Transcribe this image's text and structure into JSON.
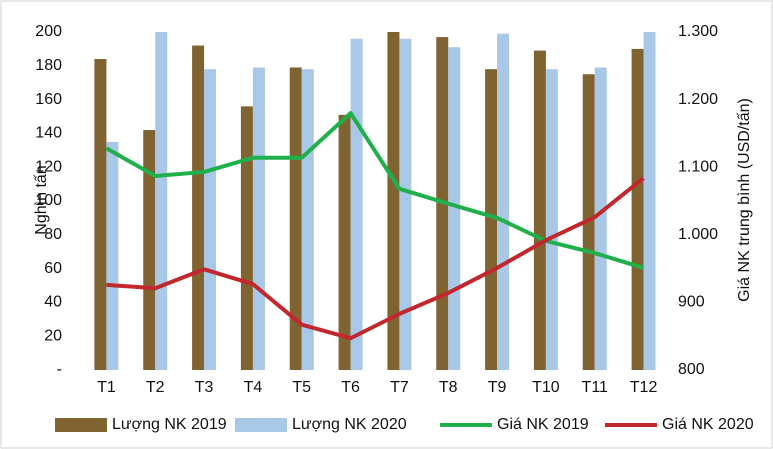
{
  "chart_data": {
    "type": "bar-line",
    "y_label": "Nghìn tấn",
    "y2_label": "Giá NK trung bình (USD/tấn)",
    "categories": [
      "T1",
      "T2",
      "T3",
      "T4",
      "T5",
      "T6",
      "T7",
      "T8",
      "T9",
      "T10",
      "T11",
      "T12"
    ],
    "series": [
      {
        "name": "Lượng NK 2019",
        "type": "bar",
        "color": "#7f6432",
        "values": [
          184,
          142,
          192,
          156,
          179,
          151,
          200,
          197,
          178,
          189,
          175,
          190
        ]
      },
      {
        "name": "Lượng NK 2020",
        "type": "bar",
        "color": "#a9c8e8",
        "values": [
          135,
          200,
          178,
          179,
          178,
          196,
          196,
          191,
          199,
          178,
          179,
          200
        ]
      },
      {
        "name": "Giá NK 2019",
        "type": "line",
        "axis": "y2",
        "color": "#1fb04b",
        "values": [
          1128,
          1087,
          1093,
          1114,
          1114,
          1180,
          1068,
          1046,
          1025,
          991,
          973,
          951
        ]
      },
      {
        "name": "Giá NK 2020",
        "type": "line",
        "axis": "y2",
        "color": "#c1272d",
        "values": [
          926,
          921,
          949,
          927,
          867,
          847,
          883,
          914,
          951,
          992,
          1026,
          1084
        ]
      }
    ],
    "ylim": [
      0,
      200
    ],
    "yticks": [
      {
        "value": 0,
        "label": "-"
      },
      20,
      40,
      60,
      80,
      100,
      120,
      140,
      160,
      180,
      200
    ],
    "y2lim": [
      800,
      1300
    ],
    "y2ticks": [
      800,
      900,
      {
        "value": 1000,
        "label": "1.000"
      },
      {
        "value": 1100,
        "label": "1.100"
      },
      {
        "value": 1200,
        "label": "1.200"
      },
      {
        "value": 1300,
        "label": "1.300"
      }
    ]
  }
}
